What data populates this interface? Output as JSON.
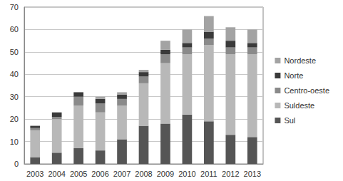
{
  "chart_data": {
    "type": "bar",
    "stacked": true,
    "grid": true,
    "legend": "right",
    "categories": [
      "2003",
      "2004",
      "2005",
      "2006",
      "2007",
      "2008",
      "2009",
      "2010",
      "2011",
      "2012",
      "2013"
    ],
    "series": [
      {
        "name": "Sul",
        "color": "#555555",
        "values": [
          3,
          5,
          7,
          6,
          11,
          17,
          18,
          22,
          19,
          13,
          12
        ]
      },
      {
        "name": "Suldeste",
        "color": "#b8b8b8",
        "values": [
          12,
          15,
          19,
          17,
          15,
          19,
          27,
          27,
          34,
          36,
          37
        ]
      },
      {
        "name": "Centro-oeste",
        "color": "#8a8a8a",
        "values": [
          1,
          1,
          4,
          4,
          3,
          3,
          4,
          3,
          3,
          3,
          3
        ]
      },
      {
        "name": "Norte",
        "color": "#3a3a3a",
        "values": [
          1,
          2,
          2,
          2,
          2,
          2,
          2,
          2,
          3,
          3,
          2
        ]
      },
      {
        "name": "Nordeste",
        "color": "#a3a3a3",
        "values": [
          0,
          0,
          0,
          1,
          1,
          1,
          4,
          6,
          7,
          6,
          6
        ]
      }
    ],
    "ylim": [
      0,
      70
    ],
    "yticks": [
      0,
      10,
      20,
      30,
      40,
      50,
      60,
      70
    ]
  }
}
